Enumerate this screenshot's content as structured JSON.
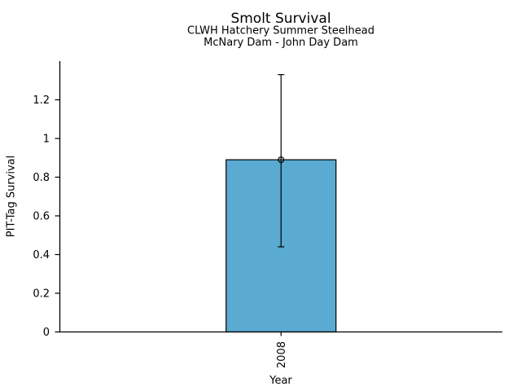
{
  "chart_data": {
    "type": "bar",
    "title": "Smolt Survival",
    "subtitles": [
      "CLWH Hatchery Summer Steelhead",
      "McNary Dam - John Day Dam"
    ],
    "xlabel": "Year",
    "ylabel": "PIT-Tag Survival",
    "categories": [
      "2008"
    ],
    "values": [
      0.89
    ],
    "error_low": [
      0.44
    ],
    "error_high": [
      1.33
    ],
    "ylim": [
      0,
      1.4
    ],
    "yticks": [
      0,
      0.2,
      0.4,
      0.6,
      0.8,
      1,
      1.2
    ],
    "ytick_labels": [
      "0",
      "0.2",
      "0.4",
      "0.6",
      "0.8",
      "1",
      "1.2"
    ],
    "bar_color": "#5AAAD2",
    "edge_color": "#000000",
    "axis_color": "#000000",
    "marker": "open-circle",
    "grid": false,
    "legend": null,
    "background": "#FFFFFF"
  }
}
